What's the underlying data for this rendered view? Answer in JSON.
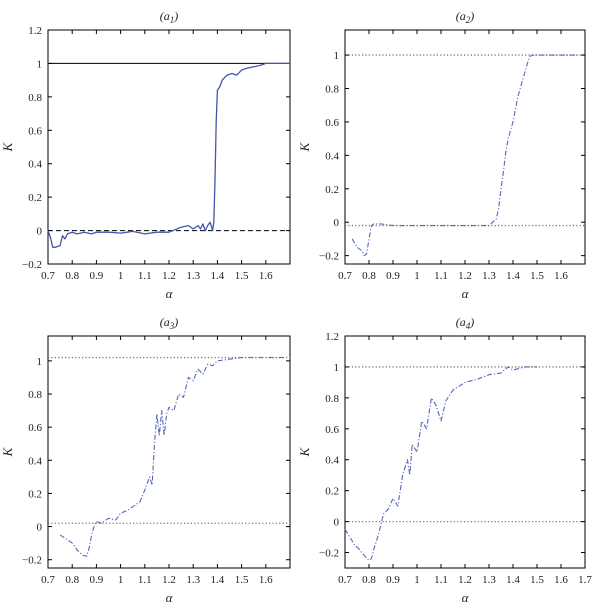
{
  "chart_data": [
    {
      "type": "line",
      "title": "(a1)",
      "title_main": "(a",
      "title_sub": "1",
      "xlabel": "α",
      "ylabel": "K",
      "xlim": [
        0.7,
        1.7
      ],
      "ylim": [
        -0.2,
        1.2
      ],
      "xticks": [
        0.7,
        0.8,
        0.9,
        1,
        1.1,
        1.2,
        1.3,
        1.4,
        1.5,
        1.6
      ],
      "xtick_labels": [
        "0.7",
        "0.8",
        "0.9",
        "1",
        "1.1",
        "1.2",
        "1.3",
        "1.4",
        "1.5",
        "1.6"
      ],
      "yticks": [
        -0.2,
        0,
        0.2,
        0.4,
        0.6,
        0.8,
        1,
        1.2
      ],
      "ytick_labels": [
        "−0.2",
        "0",
        "0.2",
        "0.4",
        "0.6",
        "0.8",
        "1",
        "1.2"
      ],
      "grid": false,
      "reference_lines": [
        {
          "y": 1,
          "style": "solid",
          "color": "#000000"
        },
        {
          "y": 0,
          "style": "dashed",
          "color": "#000000"
        }
      ],
      "series": [
        {
          "style": "solid",
          "color": "#4455aa",
          "x": [
            0.7,
            0.71,
            0.72,
            0.73,
            0.75,
            0.76,
            0.77,
            0.78,
            0.8,
            0.82,
            0.85,
            0.88,
            0.9,
            0.95,
            1.0,
            1.05,
            1.1,
            1.15,
            1.2,
            1.25,
            1.28,
            1.3,
            1.32,
            1.33,
            1.34,
            1.35,
            1.36,
            1.37,
            1.38,
            1.385,
            1.39,
            1.395,
            1.4,
            1.41,
            1.42,
            1.44,
            1.46,
            1.48,
            1.5,
            1.52,
            1.55,
            1.58,
            1.6,
            1.65,
            1.7
          ],
          "y": [
            0.0,
            -0.04,
            -0.1,
            -0.1,
            -0.09,
            -0.03,
            -0.05,
            -0.02,
            -0.01,
            -0.02,
            -0.01,
            -0.02,
            -0.01,
            -0.01,
            -0.015,
            -0.005,
            -0.02,
            -0.01,
            -0.01,
            0.02,
            0.03,
            0.01,
            0.03,
            0.01,
            0.04,
            0.0,
            0.03,
            0.05,
            0.0,
            0.05,
            0.3,
            0.65,
            0.84,
            0.86,
            0.9,
            0.93,
            0.94,
            0.93,
            0.96,
            0.97,
            0.98,
            0.99,
            1.0,
            1.0,
            1.0
          ]
        }
      ]
    },
    {
      "type": "line",
      "title": "(a2)",
      "title_main": "(a",
      "title_sub": "2",
      "xlabel": "α",
      "ylabel": "K",
      "xlim": [
        0.7,
        1.7
      ],
      "ylim": [
        -0.25,
        1.15
      ],
      "xticks": [
        0.7,
        0.8,
        0.9,
        1,
        1.1,
        1.2,
        1.3,
        1.4,
        1.5,
        1.6
      ],
      "xtick_labels": [
        "0.7",
        "0.8",
        "0.9",
        "1",
        "1.1",
        "1.2",
        "1.3",
        "1.4",
        "1.5",
        "1.6"
      ],
      "yticks": [
        -0.2,
        0,
        0.2,
        0.4,
        0.6,
        0.8,
        1
      ],
      "ytick_labels": [
        "−0.2",
        "0",
        "0.2",
        "0.4",
        "0.6",
        "0.8",
        "1"
      ],
      "grid": false,
      "reference_lines": [
        {
          "y": 1,
          "style": "dotted",
          "color": "#7a7a55"
        },
        {
          "y": -0.02,
          "style": "dotted",
          "color": "#7a7a55"
        }
      ],
      "series": [
        {
          "style": "dashdot",
          "color": "#5566bb",
          "x": [
            0.73,
            0.75,
            0.77,
            0.78,
            0.79,
            0.8,
            0.81,
            0.82,
            0.85,
            0.9,
            1.0,
            1.1,
            1.2,
            1.3,
            1.33,
            1.34,
            1.35,
            1.36,
            1.37,
            1.38,
            1.4,
            1.42,
            1.44,
            1.46,
            1.47,
            1.48,
            1.5,
            1.55,
            1.6,
            1.65,
            1.67
          ],
          "y": [
            -0.1,
            -0.15,
            -0.17,
            -0.2,
            -0.19,
            -0.1,
            -0.02,
            -0.01,
            -0.01,
            -0.02,
            -0.02,
            -0.02,
            -0.02,
            -0.02,
            0.02,
            0.08,
            0.2,
            0.3,
            0.42,
            0.5,
            0.6,
            0.75,
            0.85,
            0.95,
            0.99,
            1.0,
            1.0,
            1.0,
            1.0,
            1.0,
            1.0
          ]
        }
      ]
    },
    {
      "type": "line",
      "title": "(a3)",
      "title_main": "(a",
      "title_sub": "3",
      "xlabel": "α",
      "ylabel": "K",
      "xlim": [
        0.7,
        1.7
      ],
      "ylim": [
        -0.25,
        1.15
      ],
      "xticks": [
        0.7,
        0.8,
        0.9,
        1,
        1.1,
        1.2,
        1.3,
        1.4,
        1.5,
        1.6
      ],
      "xtick_labels": [
        "0.7",
        "0.8",
        "0.9",
        "1",
        "1.1",
        "1.2",
        "1.3",
        "1.4",
        "1.5",
        "1.6"
      ],
      "yticks": [
        -0.2,
        0,
        0.2,
        0.4,
        0.6,
        0.8,
        1
      ],
      "ytick_labels": [
        "−0.2",
        "0",
        "0.2",
        "0.4",
        "0.6",
        "0.8",
        "1"
      ],
      "grid": false,
      "reference_lines": [
        {
          "y": 1.02,
          "style": "dotted",
          "color": "#7a7a55"
        },
        {
          "y": 0.02,
          "style": "dotted",
          "color": "#7a7a55"
        }
      ],
      "series": [
        {
          "style": "dashdot",
          "color": "#5566bb",
          "x": [
            0.75,
            0.78,
            0.8,
            0.82,
            0.84,
            0.86,
            0.87,
            0.88,
            0.89,
            0.9,
            0.92,
            0.95,
            0.98,
            1.0,
            1.03,
            1.05,
            1.08,
            1.1,
            1.12,
            1.13,
            1.14,
            1.15,
            1.16,
            1.17,
            1.18,
            1.19,
            1.2,
            1.22,
            1.24,
            1.26,
            1.28,
            1.3,
            1.32,
            1.34,
            1.36,
            1.38,
            1.4,
            1.45,
            1.5,
            1.55,
            1.6,
            1.68
          ],
          "y": [
            -0.05,
            -0.08,
            -0.1,
            -0.14,
            -0.17,
            -0.18,
            -0.13,
            -0.05,
            0.0,
            0.03,
            0.02,
            0.05,
            0.04,
            0.08,
            0.1,
            0.12,
            0.15,
            0.22,
            0.3,
            0.25,
            0.5,
            0.68,
            0.55,
            0.7,
            0.55,
            0.68,
            0.72,
            0.7,
            0.8,
            0.78,
            0.9,
            0.88,
            0.95,
            0.92,
            0.98,
            0.97,
            1.0,
            1.01,
            1.02,
            1.02,
            1.02,
            1.02
          ]
        }
      ]
    },
    {
      "type": "line",
      "title": "(a4)",
      "title_main": "(a",
      "title_sub": "4",
      "xlabel": "α",
      "ylabel": "K",
      "xlim": [
        0.7,
        1.7
      ],
      "ylim": [
        -0.3,
        1.2
      ],
      "xticks": [
        0.7,
        0.8,
        0.9,
        1,
        1.1,
        1.2,
        1.3,
        1.4,
        1.5,
        1.6,
        1.7
      ],
      "xtick_labels": [
        "0.7",
        "0.8",
        "0.9",
        "1",
        "1.1",
        "1.2",
        "1.3",
        "1.4",
        "1.5",
        "1.6",
        "1.7"
      ],
      "yticks": [
        -0.2,
        0,
        0.2,
        0.4,
        0.6,
        0.8,
        1,
        1.2
      ],
      "ytick_labels": [
        "−0.2",
        "0",
        "0.2",
        "0.4",
        "0.6",
        "0.8",
        "1",
        "1.2"
      ],
      "grid": false,
      "reference_lines": [
        {
          "y": 1,
          "style": "dotted",
          "color": "#7a7a55"
        },
        {
          "y": 0,
          "style": "dotted",
          "color": "#7a7a55"
        }
      ],
      "series": [
        {
          "style": "dashdot",
          "color": "#5566bb",
          "x": [
            0.7,
            0.72,
            0.74,
            0.76,
            0.78,
            0.8,
            0.81,
            0.82,
            0.84,
            0.86,
            0.88,
            0.9,
            0.92,
            0.94,
            0.96,
            0.97,
            0.98,
            1.0,
            1.02,
            1.04,
            1.06,
            1.08,
            1.1,
            1.12,
            1.15,
            1.2,
            1.25,
            1.3,
            1.35,
            1.38,
            1.4,
            1.45,
            1.5
          ],
          "y": [
            -0.05,
            -0.1,
            -0.15,
            -0.18,
            -0.22,
            -0.25,
            -0.24,
            -0.18,
            -0.08,
            0.05,
            0.08,
            0.15,
            0.1,
            0.3,
            0.4,
            0.3,
            0.5,
            0.45,
            0.65,
            0.6,
            0.8,
            0.75,
            0.65,
            0.78,
            0.85,
            0.9,
            0.92,
            0.95,
            0.96,
            1.0,
            0.98,
            1.0,
            1.0
          ]
        }
      ]
    }
  ]
}
